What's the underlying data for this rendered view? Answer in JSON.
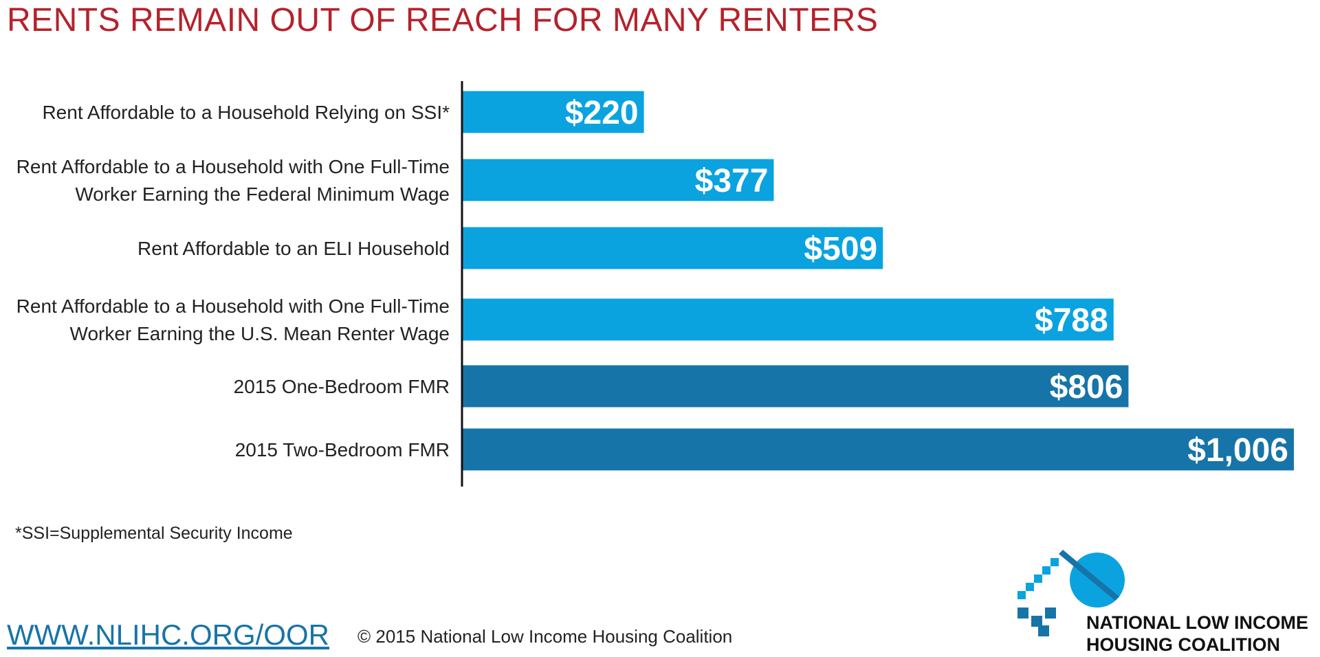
{
  "colors": {
    "title": "#b5222b",
    "bar_light": "#0aa3e0",
    "bar_dark": "#1774a8",
    "axis": "#111111",
    "label_text": "#222222",
    "bar_value_text": "#ffffff",
    "url": "#1774a8",
    "logo_light": "#0aa3e0",
    "logo_dark": "#1774a8"
  },
  "footnote": "*SSI=Supplemental Security Income",
  "footer": {
    "url": "WWW.NLIHC.ORG/OOR",
    "copyright": "© 2015 National Low Income Housing Coalition"
  },
  "logo": {
    "line1": "NATIONAL LOW INCOME",
    "line2": "HOUSING COALITION"
  },
  "chart_data": {
    "type": "bar",
    "orientation": "horizontal",
    "title": "RENTS REMAIN OUT OF REACH FOR MANY RENTERS",
    "categories": [
      [
        "Rent Affordable to a Household Relying on SSI*"
      ],
      [
        "Rent Affordable to a Household with One Full-Time",
        "Worker Earning the Federal Minimum Wage"
      ],
      [
        "Rent Affordable to an ELI Household"
      ],
      [
        "Rent Affordable to a Household with One Full-Time",
        "Worker Earning the U.S. Mean Renter Wage"
      ],
      [
        "2015 One-Bedroom FMR"
      ],
      [
        "2015 Two-Bedroom FMR"
      ]
    ],
    "values": [
      220,
      377,
      509,
      788,
      806,
      1006
    ],
    "value_labels": [
      "$220",
      "$377",
      "$509",
      "$788",
      "$806",
      "$1,006"
    ],
    "bar_color_keys": [
      "bar_light",
      "bar_light",
      "bar_light",
      "bar_light",
      "bar_dark",
      "bar_dark"
    ],
    "xlim": [
      0,
      1006
    ],
    "grid": false,
    "xlabel": "",
    "ylabel": ""
  }
}
